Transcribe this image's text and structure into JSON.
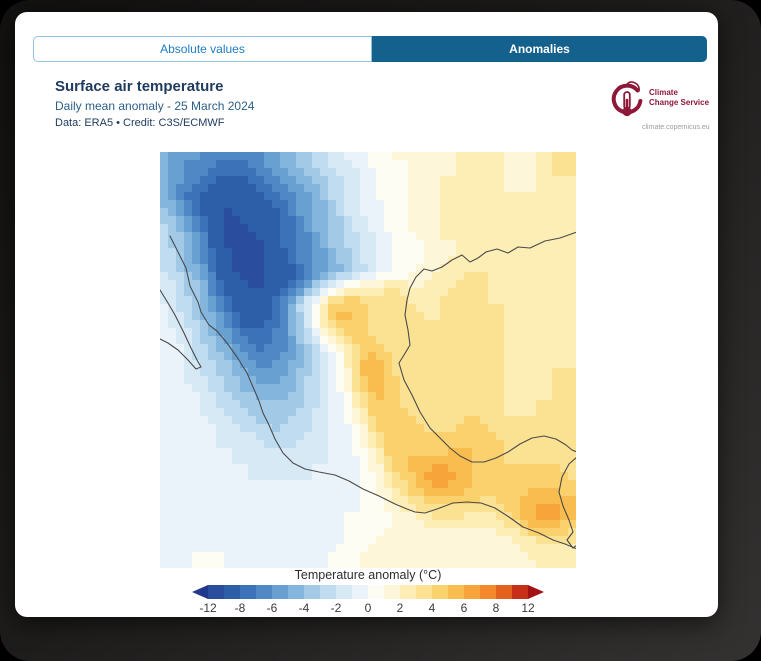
{
  "tabs": [
    {
      "label": "Absolute values",
      "active": false
    },
    {
      "label": "Anomalies",
      "active": true
    }
  ],
  "header": {
    "title": "Surface air temperature",
    "subtitle": "Daily mean anomaly - 25 March 2024",
    "credit": "Data: ERA5 • Credit: C3S/ECMWF"
  },
  "logo": {
    "line1": "Climate",
    "line2": "Change Service",
    "url": "climate.copernicus.eu",
    "brand_color": "#8e1838"
  },
  "colors": {
    "tab_active_bg": "#15618e",
    "tab_inactive_text": "#1e7cc0",
    "tab_border": "#94c1de",
    "title_text": "#1e3a5f",
    "coastline": "#4a4a4a",
    "card_bg": "#ffffff",
    "page_bg": "#1d1c1b"
  },
  "chart_data": {
    "type": "heatmap",
    "title": "Surface air temperature daily mean anomaly",
    "units": "°C",
    "legend": {
      "label": "Temperature anomaly (°C)",
      "tick_labels": [
        -12,
        -8,
        -6,
        -4,
        -2,
        0,
        2,
        4,
        6,
        8,
        12
      ],
      "bounds": [
        -12,
        -10,
        -8,
        -7,
        -6,
        -5,
        -4,
        -3,
        -2,
        -1,
        0,
        1,
        2,
        3,
        4,
        5,
        6,
        7,
        8,
        10,
        12
      ],
      "palette": [
        "#2a4d9e",
        "#2d5fa9",
        "#3c72b8",
        "#4f88c4",
        "#68a0d1",
        "#84b6dd",
        "#a2cae7",
        "#bfdcf0",
        "#d8e9f6",
        "#ebf3fa",
        "#fefdf4",
        "#fdf6d8",
        "#fceeb4",
        "#fbe293",
        "#fad16d",
        "#f9bc4e",
        "#f7a43a",
        "#f4882a",
        "#e4601d",
        "#c8301c"
      ],
      "arrow_low_color": "#21398c",
      "arrow_high_color": "#a31115",
      "position": "bottom"
    },
    "grid": {
      "cols": 26,
      "rows": 26,
      "values": [
        [
          -5,
          -6,
          -6,
          -7,
          -7,
          -7,
          -6,
          -5,
          -4,
          -3,
          -2,
          -1,
          -0.5,
          0.5,
          1,
          1,
          2,
          1.5,
          2,
          2.5,
          2,
          2,
          1.5,
          2,
          3,
          4
        ],
        [
          -5,
          -6,
          -7,
          -8,
          -8,
          -8,
          -7,
          -6,
          -5,
          -4,
          -3,
          -2,
          -1,
          0,
          0.5,
          1,
          1.5,
          2,
          2,
          2.5,
          2,
          2,
          1.5,
          2,
          3,
          3
        ],
        [
          -5,
          -7,
          -8,
          -9,
          -10,
          -9,
          -8,
          -7,
          -6,
          -5,
          -3,
          -2,
          -1,
          0,
          0.5,
          1,
          1.5,
          2,
          2.5,
          2.5,
          2.5,
          2,
          2,
          2,
          2.5,
          3
        ],
        [
          -4,
          -6,
          -8,
          -10,
          -10,
          -9,
          -9,
          -8,
          -6,
          -5,
          -4,
          -2,
          -1,
          -0.5,
          0.5,
          1,
          1.5,
          2,
          2.5,
          2.5,
          2.5,
          2,
          2,
          2,
          2,
          2.5
        ],
        [
          -3,
          -5,
          -7,
          -9,
          -11,
          -10,
          -9,
          -8,
          -7,
          -5,
          -4,
          -3,
          -1.5,
          -0.5,
          0.5,
          1,
          1.5,
          2,
          2.5,
          3,
          2.5,
          2,
          2,
          2,
          2,
          2
        ],
        [
          -3,
          -4,
          -6,
          -9,
          -11,
          -11,
          -10,
          -8,
          -7,
          -6,
          -4,
          -3,
          -2,
          -1,
          0,
          0.5,
          1,
          2,
          2,
          2.5,
          2.5,
          2.5,
          2,
          2,
          2,
          2
        ],
        [
          -2.5,
          -4,
          -6,
          -8,
          -10,
          -11,
          -10,
          -9,
          -7,
          -6,
          -5,
          -3.5,
          -2,
          -1,
          0,
          0.5,
          1,
          1.5,
          2,
          2.5,
          2.5,
          2.5,
          2,
          2,
          2.5,
          2.5
        ],
        [
          -2,
          -3.5,
          -5,
          -8,
          -10,
          -11,
          -10,
          -9,
          -8,
          -6,
          -5,
          -4,
          -2.5,
          -1,
          0,
          0.5,
          1.5,
          2,
          2.5,
          3,
          3,
          2.5,
          2,
          2,
          2.5,
          2.5
        ],
        [
          -1.5,
          -3,
          -4,
          -7,
          -9,
          -10,
          -10,
          -9,
          -7,
          -4,
          -1,
          1.5,
          2.5,
          2,
          3,
          2.5,
          2,
          2.5,
          3,
          3.5,
          3,
          2.5,
          2.5,
          2.5,
          2.5,
          2.5
        ],
        [
          -1,
          -2.5,
          -4,
          -6,
          -8,
          -9.5,
          -9,
          -7,
          -3.5,
          0,
          4,
          5,
          4.5,
          3.5,
          4,
          3,
          2.5,
          3,
          3.5,
          3.5,
          3,
          3,
          2.5,
          2.5,
          2.5,
          2.5
        ],
        [
          -1,
          -2,
          -3.5,
          -5,
          -7,
          -9,
          -8.5,
          -7,
          -4,
          -1,
          4,
          5.5,
          4.5,
          3.5,
          4,
          3.5,
          3,
          3,
          3.5,
          3.5,
          3,
          3,
          2.5,
          2.5,
          2.5,
          2.5
        ],
        [
          -0.5,
          -1.5,
          -3,
          -4.5,
          -6,
          -7.5,
          -7.5,
          -6.5,
          -4.5,
          -1.5,
          1.5,
          4,
          4.5,
          3.5,
          3.5,
          3,
          3,
          3,
          3,
          3,
          3,
          3,
          2.5,
          2.5,
          2.5,
          2.5
        ],
        [
          -0.5,
          -1,
          -2.5,
          -4,
          -5,
          -6.5,
          -7,
          -6.5,
          -5,
          -3,
          -1,
          1.5,
          4.5,
          5,
          3.5,
          3,
          3,
          3,
          3,
          3,
          3,
          3,
          2.5,
          2.5,
          2.5,
          2.5
        ],
        [
          -0.5,
          -1,
          -2,
          -3,
          -4,
          -5.5,
          -6,
          -5.5,
          -4.5,
          -3,
          -1,
          1,
          5,
          6,
          4,
          3,
          3,
          3,
          3.5,
          3,
          3,
          3,
          2.5,
          2.5,
          3,
          3
        ],
        [
          -0.5,
          -1,
          -1.5,
          -2.5,
          -3.5,
          -4.5,
          -5,
          -5,
          -4,
          -2.5,
          -1,
          0.5,
          4.5,
          6,
          4.5,
          3.5,
          3,
          3,
          3.5,
          3.5,
          3,
          3,
          2.5,
          2.5,
          3,
          3
        ],
        [
          -0.5,
          -0.5,
          -1,
          -2,
          -3,
          -3.5,
          -4,
          -4,
          -3.5,
          -2.5,
          -1,
          0,
          3,
          5,
          4.5,
          3.5,
          3,
          3,
          3.5,
          3.5,
          3.5,
          3,
          2.5,
          3,
          3,
          3
        ],
        [
          -0.5,
          -0.5,
          -1,
          -1.5,
          -2,
          -3,
          -3.5,
          -3.5,
          -3,
          -2,
          -1,
          -0.5,
          2,
          4.5,
          5,
          4,
          3.5,
          3.5,
          3.5,
          4,
          3.5,
          3,
          3,
          3,
          3,
          3
        ],
        [
          -0.5,
          -0.5,
          -0.5,
          -1,
          -1.5,
          -2,
          -2.5,
          -3,
          -2.5,
          -2,
          -1,
          -0.5,
          1,
          3.5,
          5,
          4.5,
          4,
          4,
          4,
          4.5,
          4,
          3.5,
          3,
          3,
          3,
          3
        ],
        [
          -0.5,
          -0.5,
          -0.5,
          -1,
          -1,
          -1.5,
          -2,
          -2,
          -2,
          -1.5,
          -1,
          -0.5,
          0.5,
          2.5,
          5,
          5,
          4.5,
          4.5,
          5,
          5,
          4.5,
          4,
          3.5,
          3.5,
          3.5,
          3
        ],
        [
          -0.5,
          -0.5,
          -0.5,
          -0.5,
          -1,
          -1,
          -1.5,
          -1.5,
          -1.5,
          -1,
          -1,
          -0.5,
          0,
          1.5,
          4,
          5,
          5.5,
          6,
          5.5,
          5,
          4.5,
          4,
          4,
          4,
          4,
          3.5
        ],
        [
          -0.5,
          -0.5,
          -0.5,
          -0.5,
          -0.5,
          -1,
          -1,
          -1,
          -1,
          -1,
          -0.5,
          -0.5,
          0,
          1,
          3,
          4.5,
          6,
          6.5,
          6,
          5,
          4.5,
          4.5,
          4.5,
          4.5,
          4.5,
          4
        ],
        [
          -0.5,
          -0.5,
          -0.5,
          -0.5,
          -0.5,
          -0.5,
          -1,
          -1,
          -1,
          -0.5,
          -0.5,
          -0.5,
          0,
          0.5,
          2,
          3.5,
          4.5,
          5,
          5,
          4.5,
          4,
          4.5,
          5,
          5.5,
          5.5,
          5
        ],
        [
          -0.5,
          -0.5,
          -0.5,
          -0.5,
          -0.5,
          -0.5,
          -0.5,
          -0.5,
          -0.5,
          -0.5,
          -0.5,
          0,
          0,
          0.5,
          1,
          2,
          3,
          3.5,
          3.5,
          3,
          3,
          3.5,
          5,
          6.5,
          6.5,
          6
        ],
        [
          -0.5,
          -0.5,
          -0.5,
          -0.5,
          -0.5,
          -0.5,
          -0.5,
          -0.5,
          -0.5,
          -0.5,
          -0.5,
          0,
          0,
          0.5,
          1,
          1,
          1.5,
          2,
          2,
          2,
          2,
          2.5,
          3.5,
          5,
          5.5,
          4
        ],
        [
          -0.5,
          -0.5,
          -0.5,
          -0.5,
          -0.5,
          -0.5,
          -0.5,
          -0.5,
          -0.5,
          -0.5,
          -0.5,
          0,
          0.5,
          1,
          1.5,
          1.5,
          1,
          1,
          1,
          1,
          1,
          1.5,
          2,
          2.5,
          3,
          3
        ],
        [
          -0.5,
          -0.5,
          0.5,
          1,
          -0.5,
          -0.5,
          -0.5,
          -0.5,
          -0.5,
          -0.5,
          0,
          0.5,
          1,
          1.5,
          2,
          1.5,
          1,
          1,
          1,
          1,
          1,
          1,
          1.5,
          2,
          2.5,
          3
        ]
      ]
    }
  }
}
